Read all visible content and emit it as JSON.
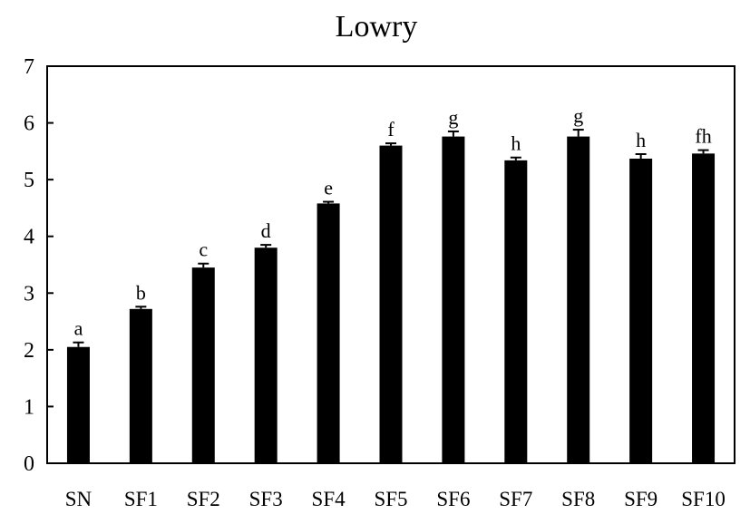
{
  "chart_data": {
    "type": "bar",
    "title": "Lowry",
    "xlabel": "",
    "ylabel": "",
    "ylim": [
      0,
      7
    ],
    "yticks": [
      "0",
      "1",
      "2",
      "3",
      "4",
      "5",
      "6",
      "7"
    ],
    "categories": [
      "SN",
      "SF1",
      "SF2",
      "SF3",
      "SF4",
      "SF5",
      "SF6",
      "SF7",
      "SF8",
      "SF9",
      "SF10"
    ],
    "values": [
      2.05,
      2.72,
      3.45,
      3.8,
      4.58,
      5.6,
      5.76,
      5.34,
      5.76,
      5.37,
      5.46
    ],
    "errors": [
      0.08,
      0.04,
      0.07,
      0.05,
      0.03,
      0.04,
      0.09,
      0.05,
      0.12,
      0.08,
      0.06
    ],
    "significance_labels": [
      "a",
      "b",
      "c",
      "d",
      "e",
      "f",
      "g",
      "h",
      "g",
      "h",
      "fh"
    ],
    "bar_color": "#000000",
    "grid": false,
    "legend": "none"
  }
}
